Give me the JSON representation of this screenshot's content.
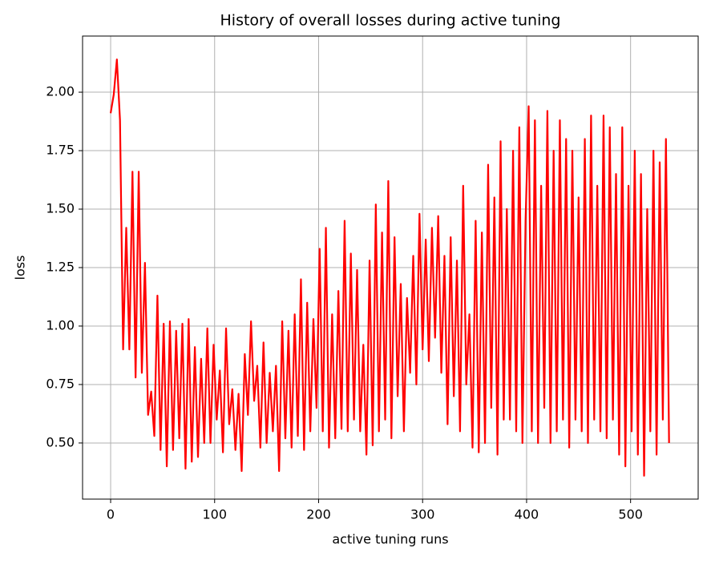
{
  "chart_data": {
    "type": "line",
    "title": "History of overall losses during active tuning",
    "x_label": "active tuning runs",
    "y_label": "loss",
    "xlim": [
      -27,
      565
    ],
    "ylim": [
      0.26,
      2.24
    ],
    "xticks": [
      0,
      100,
      200,
      300,
      400,
      500
    ],
    "yticks": [
      {
        "value": 0.5,
        "label": "0.50"
      },
      {
        "value": 0.75,
        "label": "0.75"
      },
      {
        "value": 1.0,
        "label": "1.00"
      },
      {
        "value": 1.25,
        "label": "1.25"
      },
      {
        "value": 1.5,
        "label": "1.50"
      },
      {
        "value": 1.75,
        "label": "1.75"
      },
      {
        "value": 2.0,
        "label": "2.00"
      }
    ],
    "grid": true,
    "x": [
      0,
      3,
      6,
      9,
      12,
      15,
      18,
      21,
      24,
      27,
      30,
      33,
      36,
      39,
      42,
      45,
      48,
      51,
      54,
      57,
      60,
      63,
      66,
      69,
      72,
      75,
      78,
      81,
      84,
      87,
      90,
      93,
      96,
      99,
      102,
      105,
      108,
      111,
      114,
      117,
      120,
      123,
      126,
      129,
      132,
      135,
      138,
      141,
      144,
      147,
      150,
      153,
      156,
      159,
      162,
      165,
      168,
      171,
      174,
      177,
      180,
      183,
      186,
      189,
      192,
      195,
      198,
      201,
      204,
      207,
      210,
      213,
      216,
      219,
      222,
      225,
      228,
      231,
      234,
      237,
      240,
      243,
      246,
      249,
      252,
      255,
      258,
      261,
      264,
      267,
      270,
      273,
      276,
      279,
      282,
      285,
      288,
      291,
      294,
      297,
      300,
      303,
      306,
      309,
      312,
      315,
      318,
      321,
      324,
      327,
      330,
      333,
      336,
      339,
      342,
      345,
      348,
      351,
      354,
      357,
      360,
      363,
      366,
      369,
      372,
      375,
      378,
      381,
      384,
      387,
      390,
      393,
      396,
      399,
      402,
      405,
      408,
      411,
      414,
      417,
      420,
      423,
      426,
      429,
      432,
      435,
      438,
      441,
      444,
      447,
      450,
      453,
      456,
      459,
      462,
      465,
      468,
      471,
      474,
      477,
      480,
      483,
      486,
      489,
      492,
      495,
      498,
      501,
      504,
      507,
      510,
      513,
      516,
      519,
      522,
      525,
      528,
      531,
      534,
      537
    ],
    "series": [
      {
        "name": "loss",
        "color": "#ff0000",
        "values": [
          1.91,
          1.99,
          2.14,
          1.88,
          0.9,
          1.42,
          0.9,
          1.66,
          0.78,
          1.66,
          0.8,
          1.27,
          0.62,
          0.72,
          0.53,
          1.13,
          0.47,
          1.01,
          0.4,
          1.02,
          0.47,
          0.98,
          0.52,
          1.01,
          0.39,
          1.03,
          0.42,
          0.91,
          0.44,
          0.86,
          0.5,
          0.99,
          0.5,
          0.92,
          0.6,
          0.81,
          0.46,
          0.99,
          0.58,
          0.73,
          0.47,
          0.71,
          0.38,
          0.88,
          0.62,
          1.02,
          0.68,
          0.83,
          0.48,
          0.93,
          0.5,
          0.8,
          0.55,
          0.83,
          0.38,
          1.02,
          0.52,
          0.98,
          0.48,
          1.05,
          0.53,
          1.2,
          0.47,
          1.1,
          0.55,
          1.03,
          0.65,
          1.33,
          0.55,
          1.42,
          0.48,
          1.05,
          0.52,
          1.15,
          0.56,
          1.45,
          0.55,
          1.31,
          0.6,
          1.24,
          0.55,
          0.92,
          0.45,
          1.28,
          0.49,
          1.52,
          0.55,
          1.4,
          0.6,
          1.62,
          0.52,
          1.38,
          0.7,
          1.18,
          0.55,
          1.12,
          0.8,
          1.3,
          0.75,
          1.48,
          0.9,
          1.37,
          0.85,
          1.42,
          0.95,
          1.47,
          0.8,
          1.3,
          0.58,
          1.38,
          0.7,
          1.28,
          0.55,
          1.6,
          0.75,
          1.05,
          0.48,
          1.45,
          0.46,
          1.4,
          0.5,
          1.69,
          0.65,
          1.55,
          0.45,
          1.79,
          0.6,
          1.5,
          0.6,
          1.75,
          0.55,
          1.85,
          0.5,
          1.45,
          1.94,
          0.55,
          1.88,
          0.5,
          1.6,
          0.65,
          1.92,
          0.5,
          1.75,
          0.55,
          1.88,
          0.6,
          1.8,
          0.48,
          1.75,
          0.6,
          1.55,
          0.55,
          1.8,
          0.5,
          1.9,
          0.6,
          1.6,
          0.55,
          1.9,
          0.52,
          1.85,
          0.6,
          1.65,
          0.45,
          1.85,
          0.4,
          1.6,
          0.55,
          1.75,
          0.45,
          1.65,
          0.36,
          1.5,
          0.55,
          1.75,
          0.45,
          1.7,
          0.6,
          1.8,
          0.5
        ]
      }
    ]
  }
}
